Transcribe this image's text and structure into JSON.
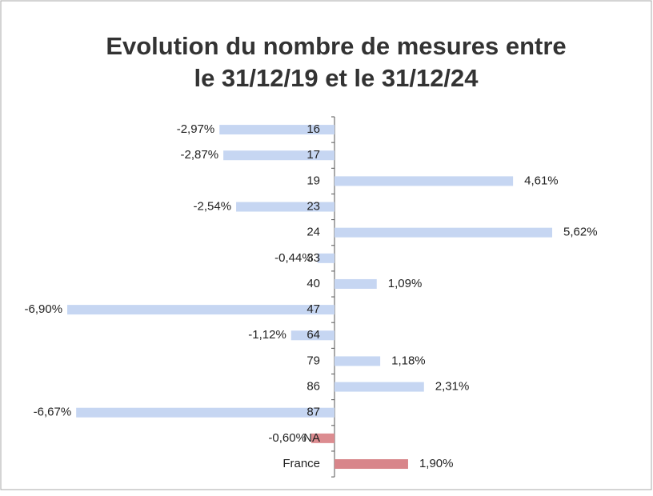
{
  "chart_data": {
    "type": "bar",
    "orientation": "horizontal",
    "title": [
      "Evolution du nombre de mesures entre",
      "le 31/12/19 et le 31/12/24"
    ],
    "categories": [
      "16",
      "17",
      "19",
      "23",
      "24",
      "33",
      "40",
      "47",
      "64",
      "79",
      "86",
      "87",
      "NA",
      "France"
    ],
    "values": [
      -2.97,
      -2.87,
      4.61,
      -2.54,
      5.62,
      -0.44,
      1.09,
      -6.9,
      -1.12,
      1.18,
      2.31,
      -6.67,
      -0.6,
      1.9
    ],
    "value_labels": [
      "-2,97%",
      "-2,87%",
      "4,61%",
      "-2,54%",
      "5,62%",
      "-0,44%",
      "1,09%",
      "-6,90%",
      "-1,12%",
      "1,18%",
      "2,31%",
      "-6,67%",
      "-0,60%",
      "1,90%"
    ],
    "colors": [
      "#c6d6f2",
      "#c6d6f2",
      "#c6d6f2",
      "#c6d6f2",
      "#c6d6f2",
      "#c6d6f2",
      "#c6d6f2",
      "#c6d6f2",
      "#c6d6f2",
      "#c6d6f2",
      "#c6d6f2",
      "#c6d6f2",
      "#dc8c90",
      "#d8858a"
    ]
  }
}
